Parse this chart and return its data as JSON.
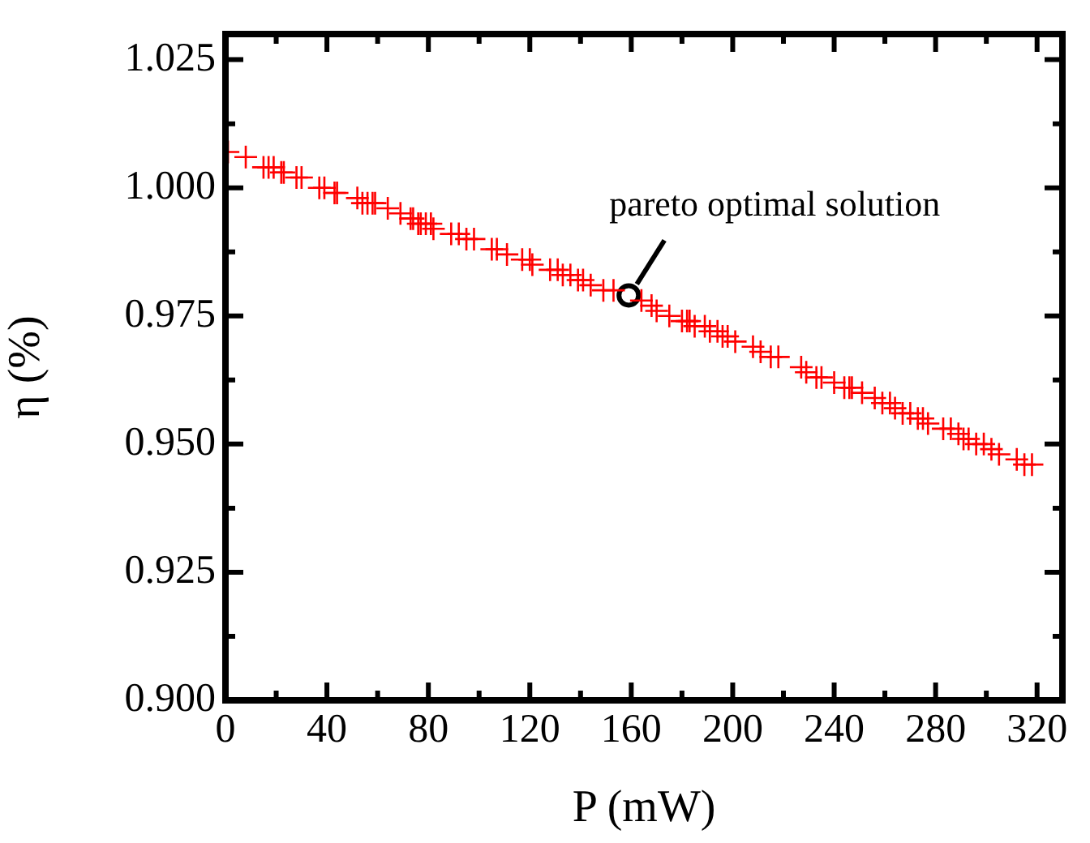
{
  "chart_data": {
    "type": "scatter",
    "xlabel": "P (mW)",
    "ylabel": "η (%)",
    "xlim": [
      0,
      330
    ],
    "ylim": [
      0.9,
      1.03
    ],
    "xticks": [
      0,
      {
        "value": 20,
        "label": null
      },
      40,
      {
        "value": 60,
        "label": null
      },
      80,
      {
        "value": 100,
        "label": null
      },
      120,
      {
        "value": 140,
        "label": null
      },
      160,
      {
        "value": 180,
        "label": null
      },
      200,
      {
        "value": 220,
        "label": null
      },
      240,
      {
        "value": 260,
        "label": null
      },
      280,
      {
        "value": 300,
        "label": null
      },
      320
    ],
    "yticks": [
      {
        "value": 0.9,
        "label": "0.900"
      },
      {
        "value": 0.9125,
        "label": null
      },
      {
        "value": 0.925,
        "label": "0.925"
      },
      {
        "value": 0.9375,
        "label": null
      },
      {
        "value": 0.95,
        "label": "0.950"
      },
      {
        "value": 0.9625,
        "label": null
      },
      {
        "value": 0.975,
        "label": "0.975"
      },
      {
        "value": 0.9875,
        "label": null
      },
      {
        "value": 1.0,
        "label": "1.000"
      },
      {
        "value": 1.0125,
        "label": null
      },
      {
        "value": 1.025,
        "label": "1.025"
      }
    ],
    "grid": false,
    "legend": false,
    "series": [
      {
        "color": "#ff0000",
        "marker": "cross",
        "x": [
          1,
          8,
          15,
          17,
          19,
          22,
          23,
          28,
          30,
          37,
          39,
          43,
          44,
          52,
          54,
          56,
          58,
          59,
          64,
          69,
          73,
          74,
          76,
          77,
          79,
          81,
          82,
          89,
          92,
          95,
          98,
          105,
          107,
          111,
          117,
          120,
          121,
          128,
          131,
          133,
          136,
          139,
          141,
          144,
          149,
          153,
          164,
          168,
          170,
          175,
          180,
          182,
          183,
          185,
          189,
          191,
          194,
          196,
          198,
          201,
          208,
          211,
          215,
          218,
          227,
          229,
          233,
          235,
          240,
          244,
          246,
          247,
          251,
          256,
          259,
          262,
          264,
          267,
          270,
          273,
          275,
          277,
          283,
          286,
          289,
          291,
          293,
          296,
          299,
          302,
          305,
          312,
          315,
          318
        ],
        "values": [
          1.007,
          1.006,
          1.004,
          1.004,
          1.004,
          1.003,
          1.003,
          1.002,
          1.002,
          1.0,
          1.0,
          0.999,
          0.999,
          0.998,
          0.997,
          0.997,
          0.997,
          0.997,
          0.996,
          0.995,
          0.994,
          0.994,
          0.993,
          0.993,
          0.993,
          0.993,
          0.992,
          0.991,
          0.991,
          0.99,
          0.99,
          0.988,
          0.988,
          0.987,
          0.986,
          0.986,
          0.985,
          0.984,
          0.984,
          0.983,
          0.983,
          0.982,
          0.982,
          0.981,
          0.98,
          0.98,
          0.978,
          0.977,
          0.976,
          0.975,
          0.974,
          0.974,
          0.974,
          0.973,
          0.973,
          0.972,
          0.972,
          0.971,
          0.971,
          0.97,
          0.969,
          0.968,
          0.967,
          0.967,
          0.965,
          0.964,
          0.963,
          0.963,
          0.962,
          0.961,
          0.961,
          0.961,
          0.96,
          0.959,
          0.958,
          0.958,
          0.957,
          0.956,
          0.956,
          0.955,
          0.955,
          0.954,
          0.953,
          0.953,
          0.952,
          0.951,
          0.951,
          0.95,
          0.95,
          0.949,
          0.948,
          0.947,
          0.946,
          0.946
        ]
      },
      {
        "color": "#000000",
        "marker": "circle",
        "x": [
          159
        ],
        "values": [
          0.979
        ]
      }
    ],
    "annotations": [
      {
        "text": "pareto optimal solution",
        "x": 159,
        "y": 0.979
      }
    ]
  }
}
